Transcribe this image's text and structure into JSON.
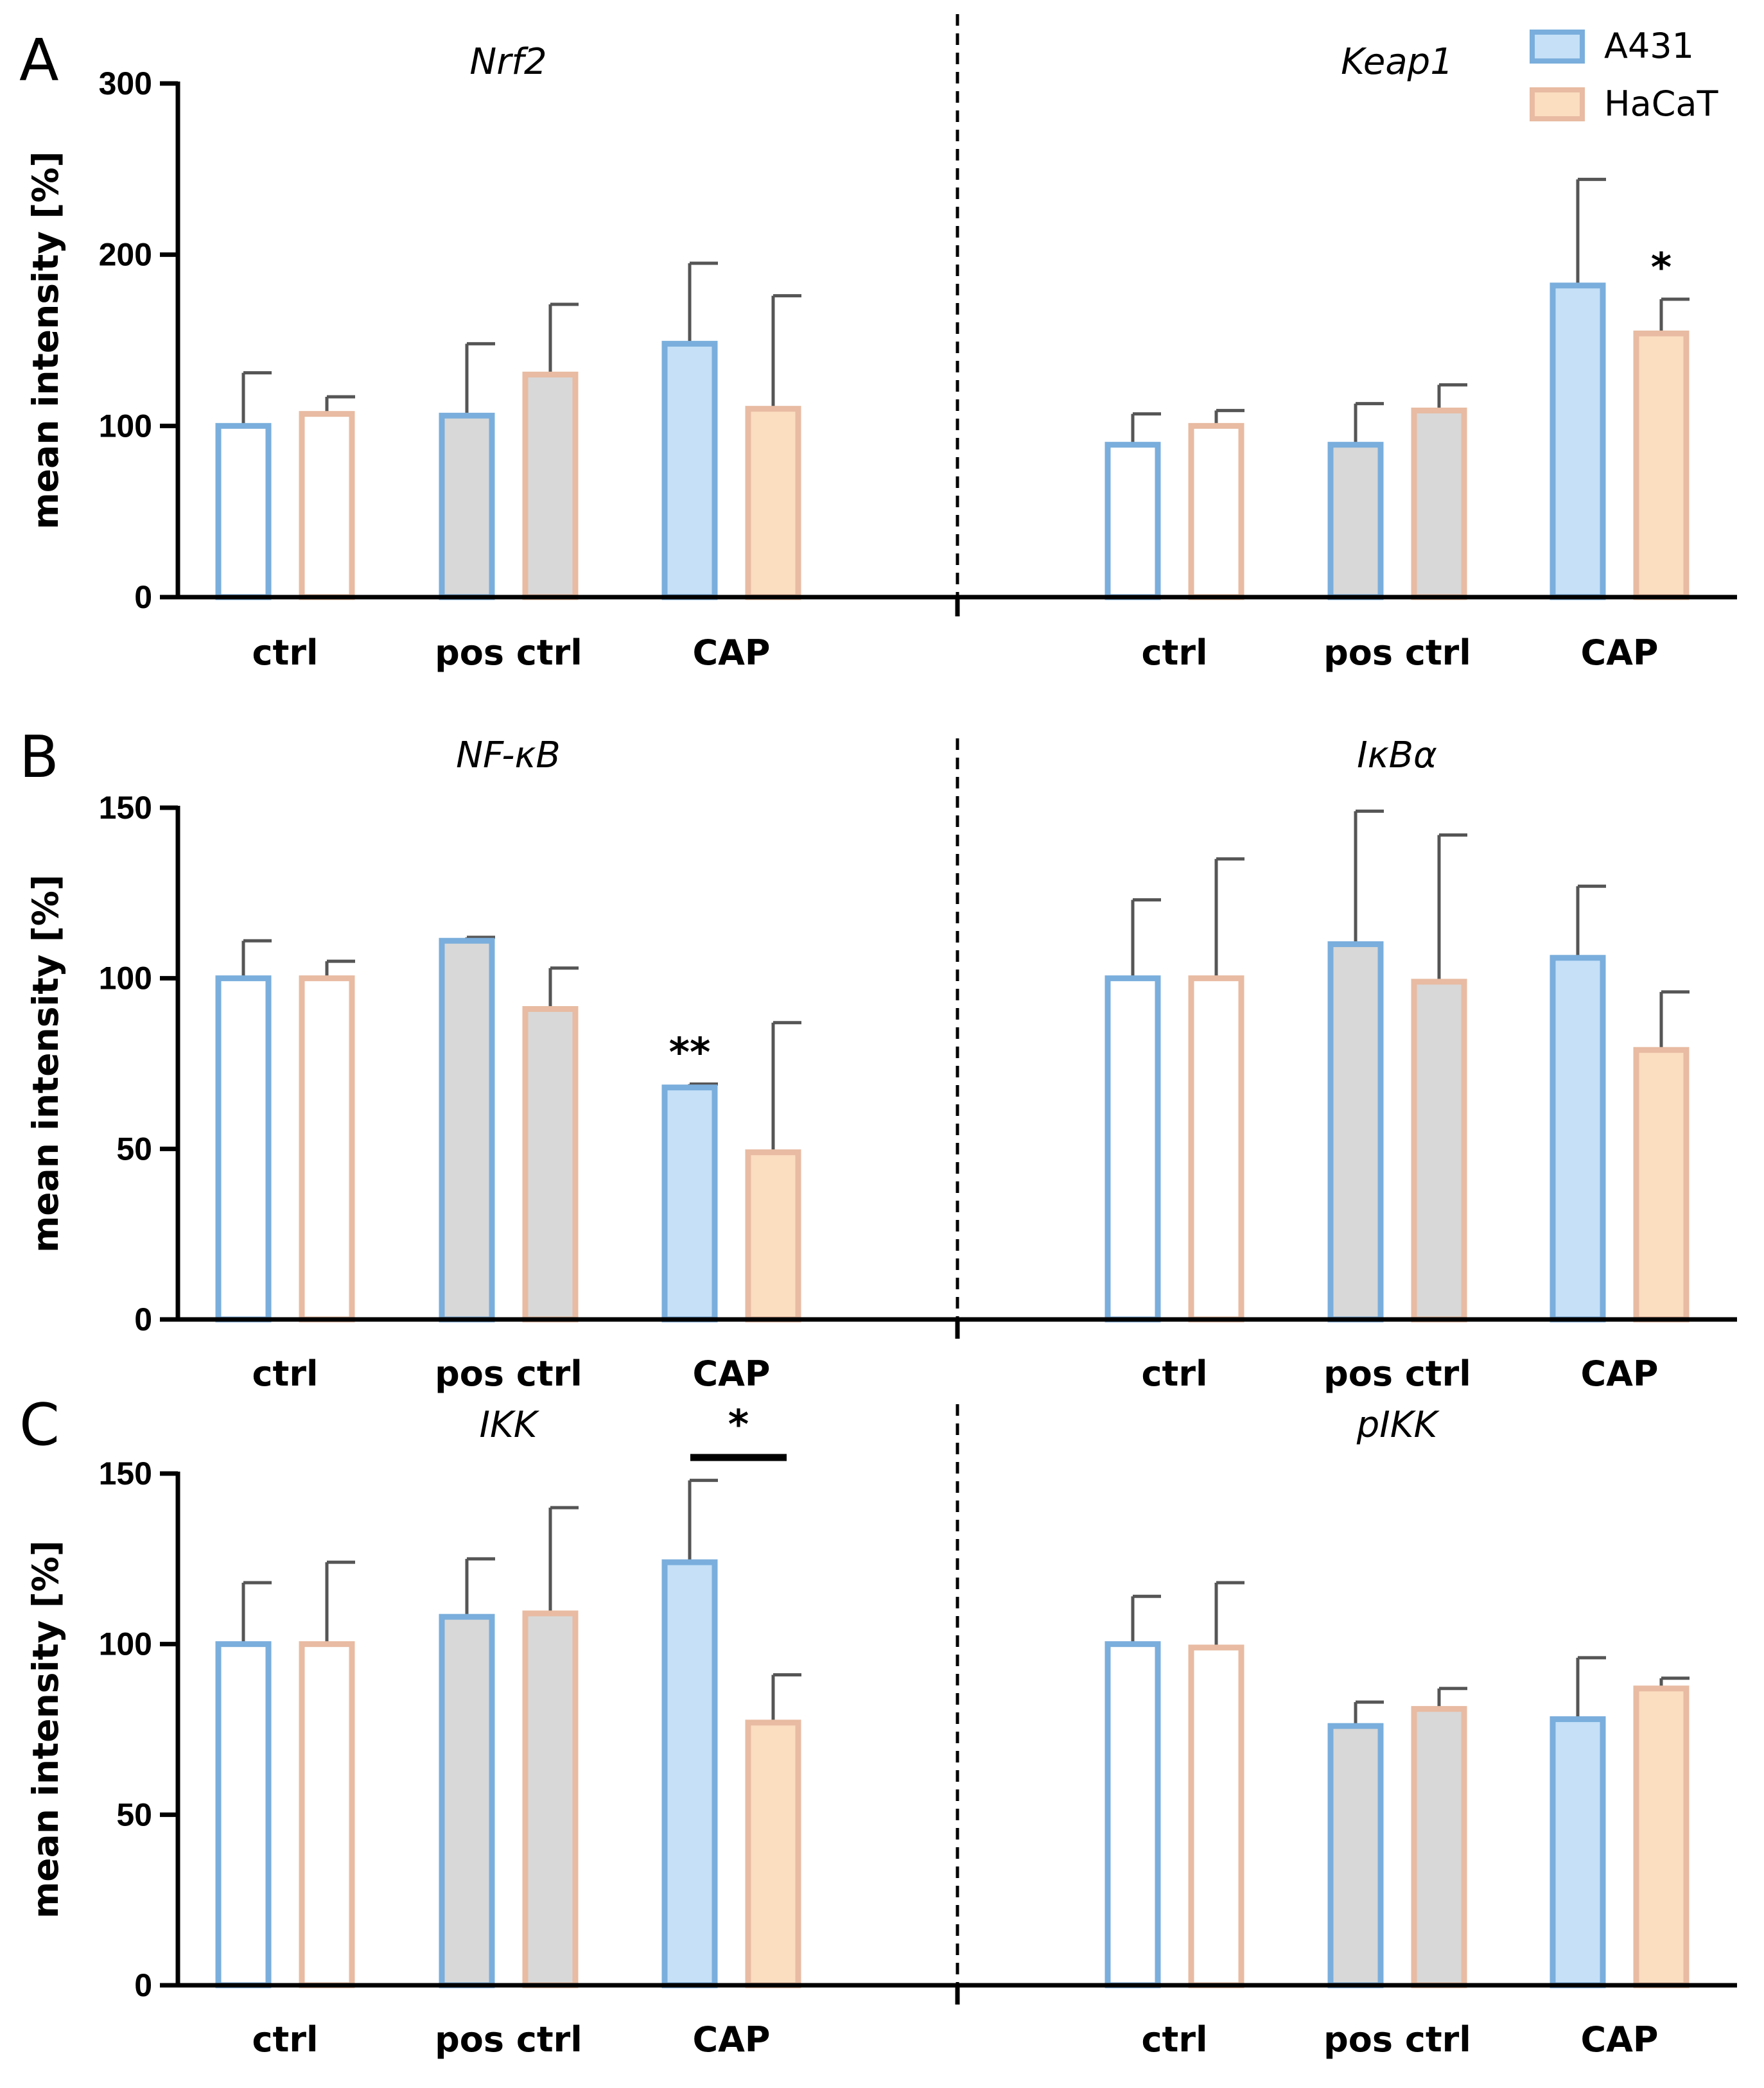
{
  "legend": [
    {
      "name": "A431",
      "edge_color": "#7aaedc",
      "fill_color": "#c5e0f7"
    },
    {
      "name": "HaCaT",
      "edge_color": "#e8bba2",
      "fill_color": "#fbddc0"
    }
  ],
  "colors": {
    "a431_edge": "#7aaedc",
    "a431_cap_fill": "#c5e0f7",
    "hacat_edge": "#e8bba2",
    "hacat_cap_fill": "#fbddc0",
    "pos_ctrl_fill": "#d8d8d8",
    "ctrl_fill": "#ffffff"
  },
  "chart_data": [
    {
      "type": "bar",
      "panel": "A",
      "ylabel": "mean intensity [%]",
      "ylim": [
        0,
        300
      ],
      "yticks": [
        0,
        100,
        200,
        300
      ],
      "categories": [
        "ctrl",
        "pos ctrl",
        "CAP"
      ],
      "groups": [
        {
          "title": "Nrf2",
          "series": [
            {
              "name": "A431",
              "values": [
                100,
                106,
                148
              ],
              "errors": [
                31,
                42,
                47
              ],
              "significance": [
                "",
                "",
                ""
              ]
            },
            {
              "name": "HaCaT",
              "values": [
                107,
                130,
                110
              ],
              "errors": [
                10,
                41,
                66
              ],
              "significance": [
                "",
                "",
                ""
              ]
            }
          ]
        },
        {
          "title": "Keap1",
          "series": [
            {
              "name": "A431",
              "values": [
                89,
                89,
                182
              ],
              "errors": [
                18,
                24,
                62
              ],
              "significance": [
                "",
                "",
                ""
              ]
            },
            {
              "name": "HaCaT",
              "values": [
                100,
                109,
                154
              ],
              "errors": [
                9,
                15,
                20
              ],
              "significance": [
                "",
                "",
                "*"
              ]
            }
          ]
        }
      ]
    },
    {
      "type": "bar",
      "panel": "B",
      "ylabel": "mean intensity [%]",
      "ylim": [
        0,
        150
      ],
      "yticks": [
        0,
        50,
        100,
        150
      ],
      "categories": [
        "ctrl",
        "pos ctrl",
        "CAP"
      ],
      "groups": [
        {
          "title": "NF-κB",
          "series": [
            {
              "name": "A431",
              "values": [
                100,
                111,
                68
              ],
              "errors": [
                11,
                1,
                1
              ],
              "significance": [
                "",
                "",
                "**"
              ]
            },
            {
              "name": "HaCaT",
              "values": [
                100,
                91,
                49
              ],
              "errors": [
                5,
                12,
                38
              ],
              "significance": [
                "",
                "",
                ""
              ]
            }
          ]
        },
        {
          "title": "IκBα",
          "series": [
            {
              "name": "A431",
              "values": [
                100,
                110,
                106
              ],
              "errors": [
                23,
                39,
                21
              ],
              "significance": [
                "",
                "",
                ""
              ]
            },
            {
              "name": "HaCaT",
              "values": [
                100,
                99,
                79
              ],
              "errors": [
                35,
                43,
                17
              ],
              "significance": [
                "",
                "",
                ""
              ]
            }
          ]
        }
      ]
    },
    {
      "type": "bar",
      "panel": "C",
      "ylabel": "mean intensity [%]",
      "ylim": [
        0,
        150
      ],
      "yticks": [
        0,
        50,
        100,
        150
      ],
      "categories": [
        "ctrl",
        "pos ctrl",
        "CAP"
      ],
      "groups": [
        {
          "title": "IKK",
          "series": [
            {
              "name": "A431",
              "values": [
                100,
                108,
                124
              ],
              "errors": [
                18,
                17,
                24
              ],
              "significance": [
                "",
                "",
                ""
              ]
            },
            {
              "name": "HaCaT",
              "values": [
                100,
                109,
                77
              ],
              "errors": [
                24,
                31,
                14
              ],
              "significance": [
                "",
                "",
                ""
              ]
            }
          ],
          "bracket": {
            "category": "CAP",
            "label": "*"
          }
        },
        {
          "title": "pIKK",
          "series": [
            {
              "name": "A431",
              "values": [
                100,
                76,
                78
              ],
              "errors": [
                14,
                7,
                18
              ],
              "significance": [
                "",
                "",
                ""
              ]
            },
            {
              "name": "HaCaT",
              "values": [
                99,
                81,
                87
              ],
              "errors": [
                19,
                6,
                3
              ],
              "significance": [
                "",
                "",
                ""
              ]
            }
          ]
        }
      ]
    }
  ]
}
